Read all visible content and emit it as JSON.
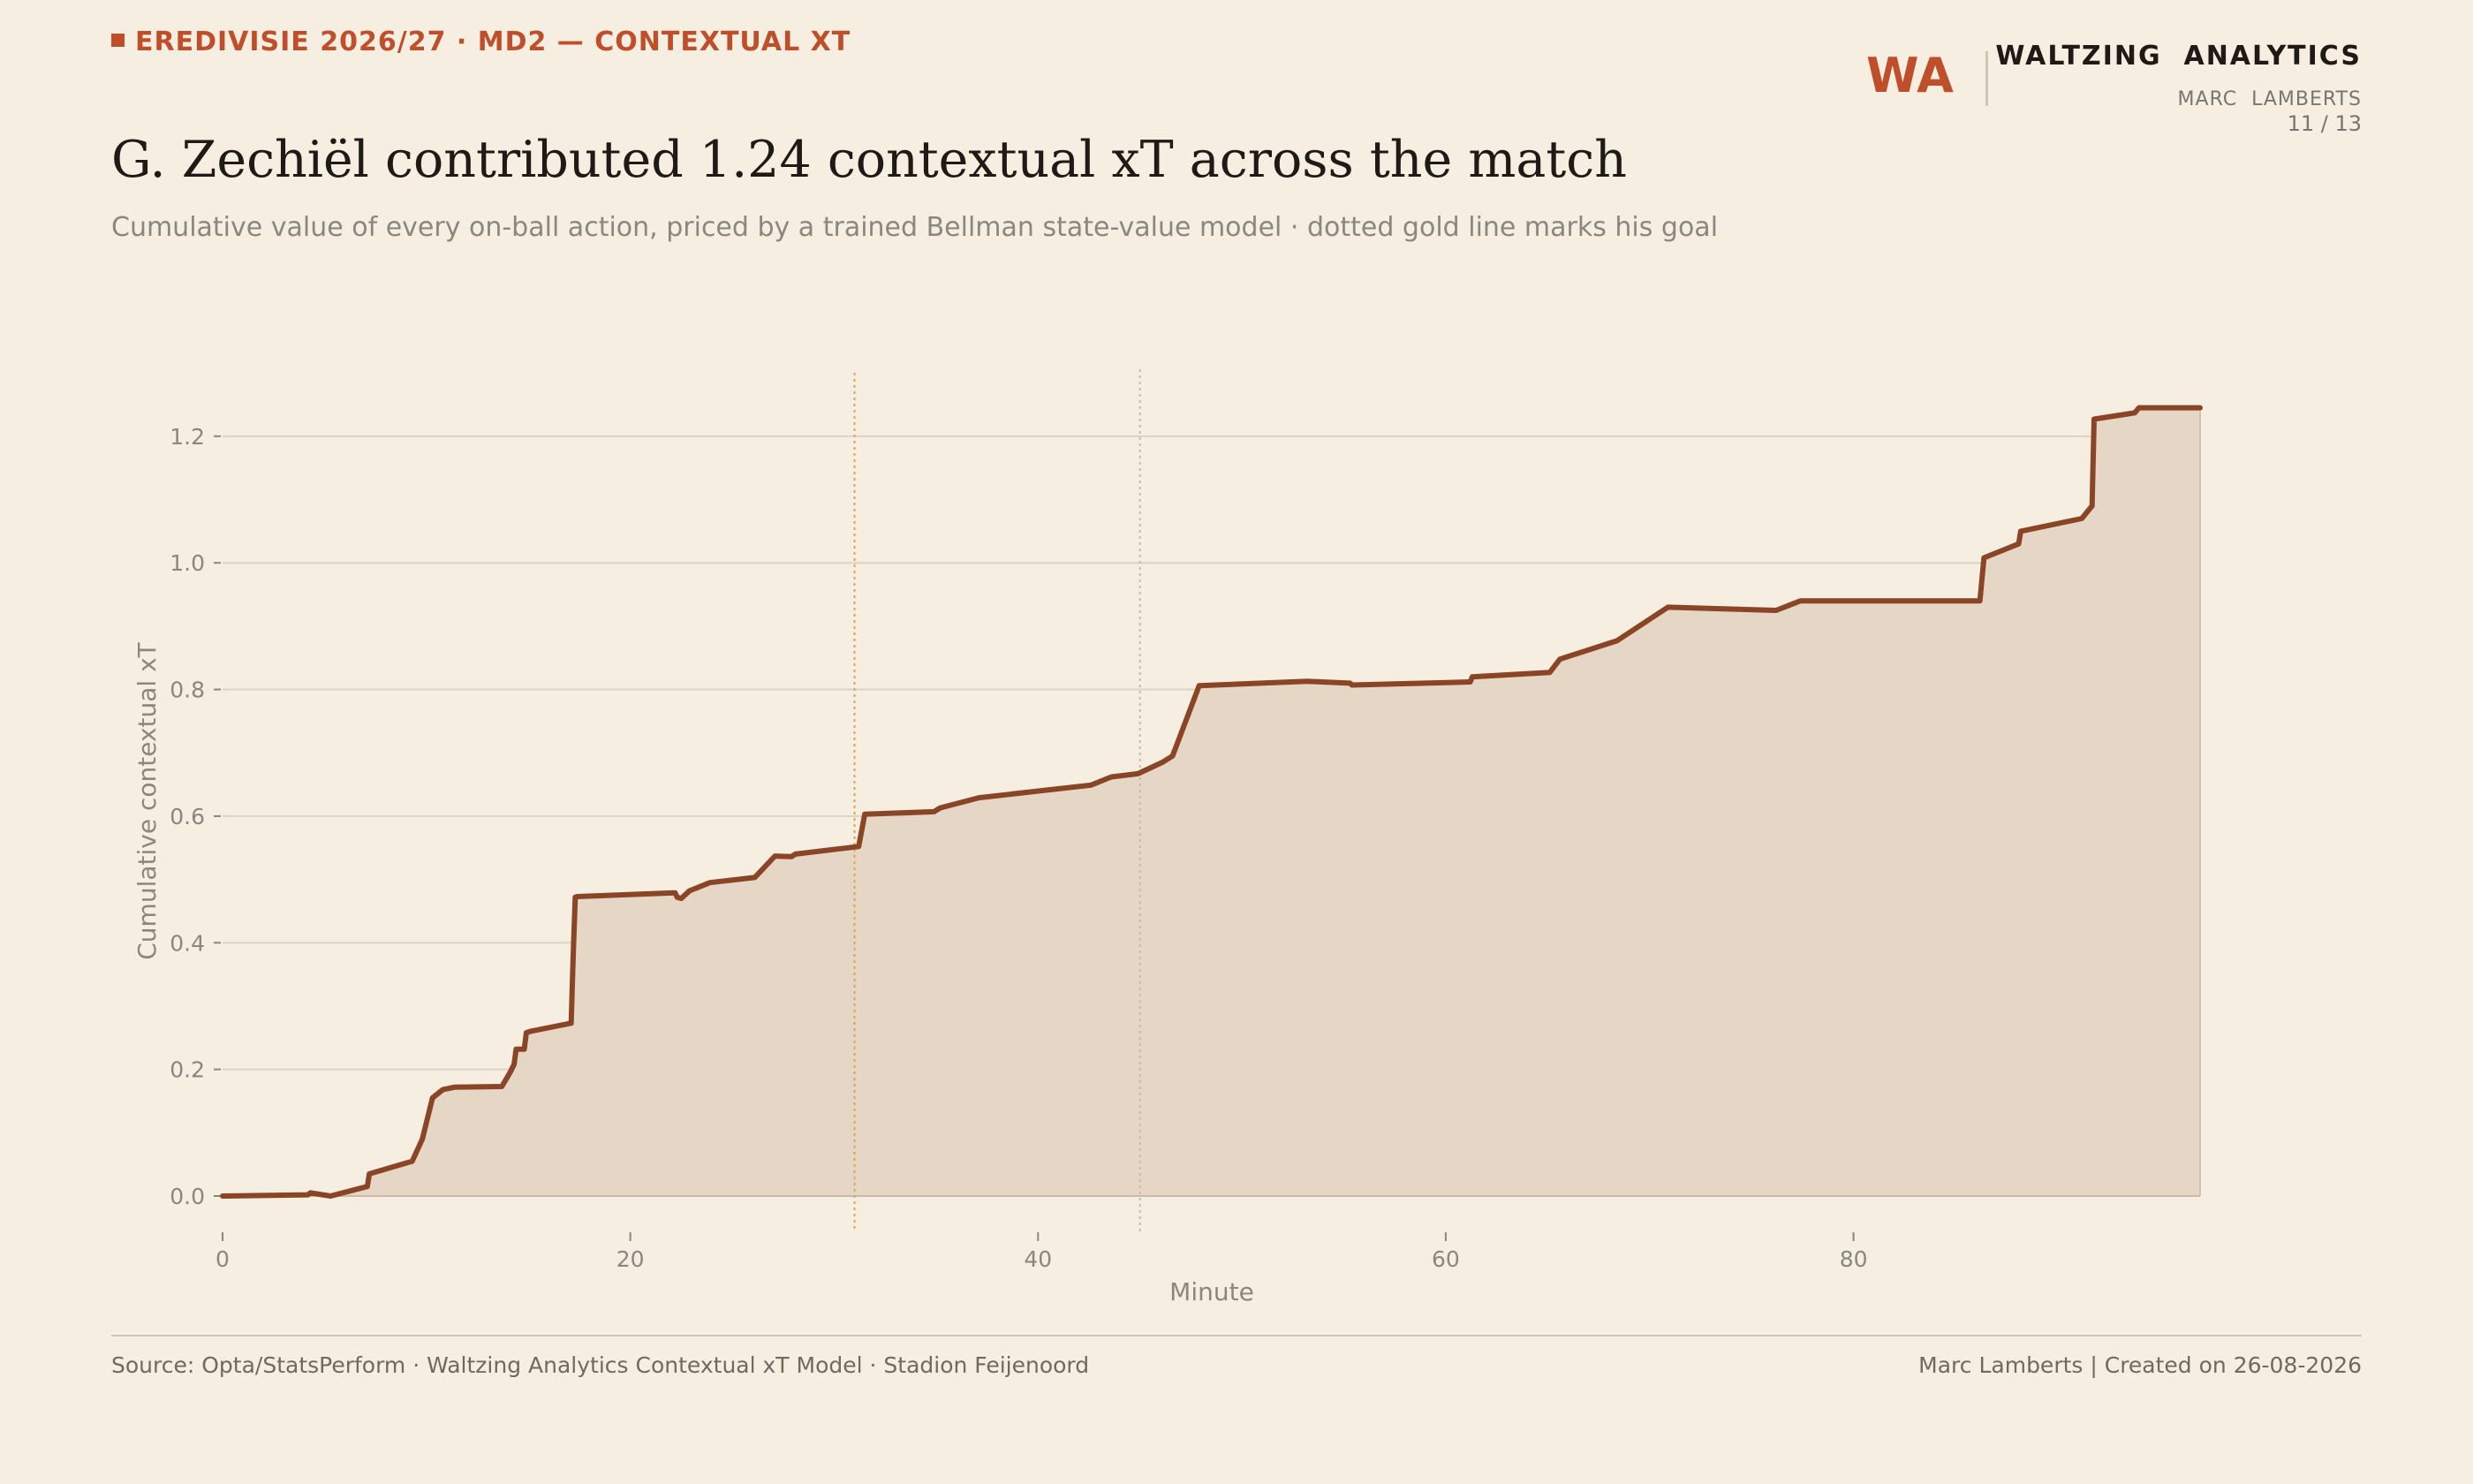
{
  "header": {
    "kicker": "EREDIVISIE 2026/27 · MD2 — CONTEXTUAL XT",
    "title": "G. Zechiël contributed 1.24 contextual xT across the match",
    "subtitle": "Cumulative value of every on-ball action, priced by a trained Bellman state-value model · dotted gold line marks his goal"
  },
  "brand": {
    "mark": "WA",
    "name": "WALTZING  ANALYTICS",
    "author": "MARC  LAMBERTS",
    "page": "11 / 13"
  },
  "footer": {
    "source": "Source: Opta/StatsPerform · Waltzing Analytics Contextual xT Model · Stadion Feijenoord",
    "credit": "Marc Lamberts | Created on 26-08-2026"
  },
  "colors": {
    "background": "#F5EEE1",
    "accent": "#BF4F2A",
    "line": "#8A4426",
    "fill": "#E5D6C6",
    "goal_marker": "#E0A24A",
    "halftime_marker": "#C9BBA8",
    "grid": "#DDD3C4"
  },
  "chart_data": {
    "type": "area",
    "title": "",
    "xlabel": "Minute",
    "ylabel": "Cumulative contextual xT",
    "xlim": [
      0,
      97
    ],
    "ylim": [
      -0.06,
      1.31
    ],
    "xticks": [
      0,
      20,
      40,
      60,
      80
    ],
    "yticks": [
      0.0,
      0.2,
      0.4,
      0.6,
      0.8,
      1.0,
      1.2
    ],
    "grid": "horizontal",
    "goal_minute": 31,
    "halftime_minute": 45,
    "series": [
      {
        "x": [
          0,
          4.2,
          4.3,
          5.3,
          7.1,
          7.2,
          9.3,
          9.8,
          10.3,
          10.8,
          11.4,
          13.7,
          14.1,
          14.3,
          14.4,
          14.8,
          14.9,
          15.1,
          17.1,
          17.2,
          17.3,
          17.4,
          22.2,
          22.3,
          22.5,
          22.9,
          23.9,
          26.1,
          27.1,
          27.9,
          28.1,
          31.2,
          31.5,
          34.9,
          35.2,
          37.1,
          42.6,
          43.6,
          44.9,
          46.1,
          46.6,
          47.9,
          53.2,
          55.3,
          55.4,
          61.2,
          61.3,
          65.1,
          65.6,
          68.4,
          70.9,
          76.2,
          77.4,
          86.2,
          86.4,
          88.1,
          88.2,
          91.2,
          91.7,
          91.8,
          93.8,
          94.0,
          97.0
        ],
        "y": [
          0.0,
          0.002,
          0.005,
          0.0,
          0.015,
          0.035,
          0.055,
          0.09,
          0.155,
          0.168,
          0.172,
          0.173,
          0.195,
          0.208,
          0.232,
          0.232,
          0.258,
          0.26,
          0.273,
          0.38,
          0.472,
          0.473,
          0.479,
          0.472,
          0.47,
          0.482,
          0.495,
          0.503,
          0.537,
          0.536,
          0.54,
          0.552,
          0.603,
          0.607,
          0.613,
          0.629,
          0.649,
          0.662,
          0.667,
          0.685,
          0.695,
          0.806,
          0.813,
          0.81,
          0.807,
          0.812,
          0.82,
          0.827,
          0.848,
          0.877,
          0.93,
          0.925,
          0.94,
          0.94,
          1.008,
          1.03,
          1.05,
          1.07,
          1.09,
          1.227,
          1.237,
          1.245,
          1.245
        ]
      }
    ]
  }
}
